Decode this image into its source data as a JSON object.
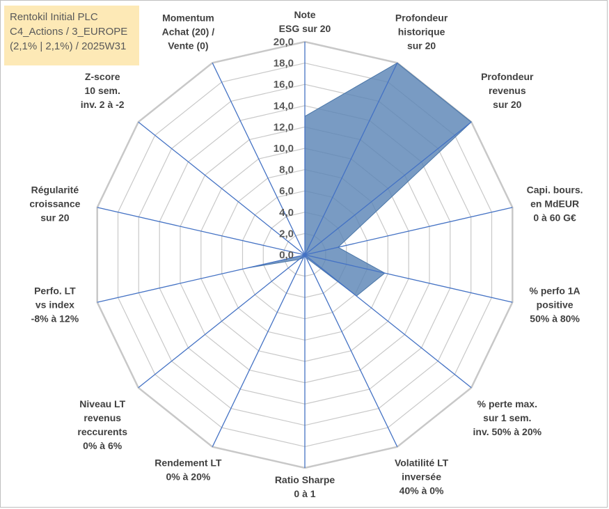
{
  "info_box": {
    "line1": "Rentokil Initial PLC",
    "line2": "C4_Actions / 3_EUROPE",
    "line3": "(2,1% | 2,1%) / 2025W31"
  },
  "chart_data": {
    "type": "radar",
    "title": "",
    "rmin": 0,
    "rmax": 20,
    "tick_step": 2,
    "tick_labels": [
      "0,0",
      "2,0",
      "4,0",
      "6,0",
      "8,0",
      "10,0",
      "12,0",
      "14,0",
      "16,0",
      "18,0",
      "20,0"
    ],
    "grid": true,
    "axes": [
      {
        "lines": [
          "Note",
          "ESG sur 20"
        ]
      },
      {
        "lines": [
          "Profondeur",
          "historique",
          "sur 20"
        ]
      },
      {
        "lines": [
          "Profondeur",
          "revenus",
          "sur 20"
        ]
      },
      {
        "lines": [
          "Capi. bours.",
          "en MdEUR",
          "0 à 60 G€"
        ]
      },
      {
        "lines": [
          "% perfo 1A",
          "positive",
          "50% à 80%"
        ]
      },
      {
        "lines": [
          "% perte max.",
          "sur 1 sem.",
          "inv. 50% à 20%"
        ]
      },
      {
        "lines": [
          "Volatilité LT",
          "inversée",
          "40% à 0%"
        ]
      },
      {
        "lines": [
          "Ratio Sharpe",
          "0 à 1"
        ]
      },
      {
        "lines": [
          "Rendement LT",
          "0% à 20%"
        ]
      },
      {
        "lines": [
          "Niveau LT",
          "revenus",
          "reccurents",
          "0% à 6%"
        ]
      },
      {
        "lines": [
          "Perfo. LT",
          "vs index",
          "-8% à 12%"
        ]
      },
      {
        "lines": [
          "Régularité",
          "croissance",
          "sur 20"
        ]
      },
      {
        "lines": [
          "Z-score",
          "10 sem.",
          "inv. 2 à -2"
        ]
      },
      {
        "lines": [
          "Momentum",
          "Achat (20) /",
          "Vente (0)"
        ]
      }
    ],
    "series": [
      {
        "color": "#5b85b6",
        "values": [
          13.0,
          20.0,
          20.0,
          3.2,
          7.7,
          6.2,
          0.3,
          0.1,
          0.3,
          0.7,
          5.5,
          0.0,
          0.0,
          0.0
        ]
      }
    ],
    "colors": {
      "grid": "#c8c8c8",
      "spoke": "#4472c4",
      "fill": "#5b85b6",
      "tick": "#595959",
      "label": "#404040"
    }
  }
}
